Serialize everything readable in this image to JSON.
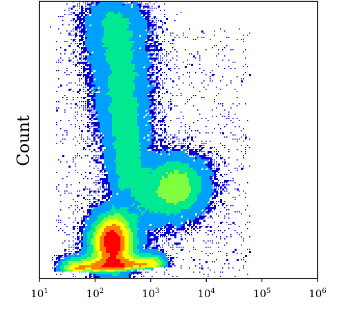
{
  "chart_data": {
    "type": "scatter",
    "plot": "density scatter (flow cytometry style)",
    "title": "",
    "xlabel": "",
    "ylabel": "Count",
    "xscale": "log",
    "xlim": [
      10,
      1000000
    ],
    "ylim": [
      0,
      1
    ],
    "xticks": [
      {
        "base": "10",
        "exp": "1",
        "value": 10
      },
      {
        "base": "10",
        "exp": "2",
        "value": 100
      },
      {
        "base": "10",
        "exp": "3",
        "value": 1000
      },
      {
        "base": "10",
        "exp": "4",
        "value": 10000
      },
      {
        "base": "10",
        "exp": "5",
        "value": 100000
      },
      {
        "base": "10",
        "exp": "6",
        "value": 1000000
      }
    ],
    "grid": false,
    "legend": "none",
    "colormap": [
      "#0000d8",
      "#00a0ff",
      "#00e890",
      "#80ff40",
      "#ffff00",
      "#ff8000",
      "#ff0000"
    ],
    "populations": [
      {
        "shape": "elongated",
        "x_from": 200,
        "x_to": 800,
        "y_from": 0.3,
        "y_to": 0.98,
        "peak_density": 0.55
      },
      {
        "shape": "blob",
        "x": 3000,
        "y": 0.33,
        "peak_density": 0.45
      },
      {
        "shape": "blob",
        "x": 200,
        "y": 0.13,
        "peak_density": 1.0
      },
      {
        "shape": "band",
        "x_from": 30,
        "x_to": 1500,
        "y": 0.03,
        "peak_density": 0.5
      }
    ]
  }
}
